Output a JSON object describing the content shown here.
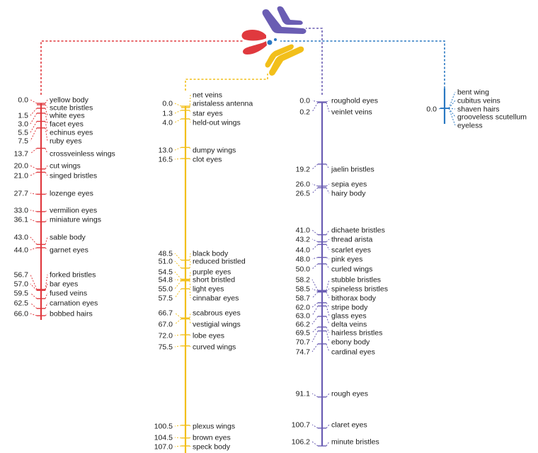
{
  "colors": {
    "x": "#e0393e",
    "c2": "#f2bf1a",
    "c3": "#6a5db3",
    "c4": "#2a78c2"
  },
  "chromosomes": [
    {
      "id": "x",
      "color": "#e0393e",
      "min": 0,
      "max": 66.0,
      "loci": [
        {
          "pos": "0.0",
          "label": "yellow body"
        },
        {
          "pos": "",
          "label": "scute bristles"
        },
        {
          "pos": "1.5",
          "label": "white eyes"
        },
        {
          "pos": "3.0",
          "label": "facet eyes"
        },
        {
          "pos": "5.5",
          "label": "echinus eyes"
        },
        {
          "pos": "7.5",
          "label": "ruby eyes"
        },
        {
          "pos": "13.7",
          "label": "crossveinless wings"
        },
        {
          "pos": "20.0",
          "label": "cut wings"
        },
        {
          "pos": "21.0",
          "label": "singed bristles"
        },
        {
          "pos": "27.7",
          "label": "lozenge eyes"
        },
        {
          "pos": "33.0",
          "label": "vermilion eyes"
        },
        {
          "pos": "36.1",
          "label": "miniature wings"
        },
        {
          "pos": "43.0",
          "label": "sable body"
        },
        {
          "pos": "44.0",
          "label": "garnet eyes"
        },
        {
          "pos": "56.7",
          "label": "forked bristles"
        },
        {
          "pos": "57.0",
          "label": "bar eyes"
        },
        {
          "pos": "59.5",
          "label": "fused veins"
        },
        {
          "pos": "62.5",
          "label": "carnation eyes"
        },
        {
          "pos": "66.0",
          "label": "bobbed hairs"
        }
      ]
    },
    {
      "id": "c2",
      "color": "#f2bf1a",
      "min": 0,
      "max": 107.0,
      "loci": [
        {
          "pos": "",
          "label": "net veins"
        },
        {
          "pos": "0.0",
          "label": "aristaless antenna"
        },
        {
          "pos": "1.3",
          "label": "star eyes"
        },
        {
          "pos": "4.0",
          "label": "held-out wings"
        },
        {
          "pos": "13.0",
          "label": "dumpy wings"
        },
        {
          "pos": "16.5",
          "label": "clot eyes"
        },
        {
          "pos": "48.5",
          "label": "black body"
        },
        {
          "pos": "51.0",
          "label": "reduced bristled"
        },
        {
          "pos": "54.5",
          "label": "purple eyes"
        },
        {
          "pos": "54.8",
          "label": "short bristled"
        },
        {
          "pos": "55.0",
          "label": "light eyes"
        },
        {
          "pos": "57.5",
          "label": "cinnabar eyes"
        },
        {
          "pos": "66.7",
          "label": "scabrous eyes"
        },
        {
          "pos": "67.0",
          "label": "vestigial wings"
        },
        {
          "pos": "72.0",
          "label": "lobe eyes"
        },
        {
          "pos": "75.5",
          "label": "curved wings"
        },
        {
          "pos": "100.5",
          "label": "plexus wings"
        },
        {
          "pos": "104.5",
          "label": "brown eyes"
        },
        {
          "pos": "107.0",
          "label": "speck body"
        }
      ]
    },
    {
      "id": "c3",
      "color": "#6a5db3",
      "min": 0,
      "max": 106.2,
      "loci": [
        {
          "pos": "0.0",
          "label": "roughold eyes"
        },
        {
          "pos": "0.2",
          "label": "veinlet veins"
        },
        {
          "pos": "19.2",
          "label": "jaelin bristles"
        },
        {
          "pos": "26.0",
          "label": "sepia eyes"
        },
        {
          "pos": "26.5",
          "label": "hairy body"
        },
        {
          "pos": "41.0",
          "label": "dichaete bristles"
        },
        {
          "pos": "43.2",
          "label": "thread arista"
        },
        {
          "pos": "44.0",
          "label": "scarlet eyes"
        },
        {
          "pos": "48.0",
          "label": "pink eyes"
        },
        {
          "pos": "50.0",
          "label": "curled wings"
        },
        {
          "pos": "58.2",
          "label": "stubble bristles"
        },
        {
          "pos": "58.5",
          "label": "spineless bristles"
        },
        {
          "pos": "58.7",
          "label": "bithorax body"
        },
        {
          "pos": "62.0",
          "label": "stripe body"
        },
        {
          "pos": "63.0",
          "label": "glass eyes"
        },
        {
          "pos": "66.2",
          "label": "delta veins"
        },
        {
          "pos": "69.5",
          "label": "hairless bristles"
        },
        {
          "pos": "70.7",
          "label": "ebony body"
        },
        {
          "pos": "74.7",
          "label": "cardinal eyes"
        },
        {
          "pos": "91.1",
          "label": "rough eyes"
        },
        {
          "pos": "100.7",
          "label": "claret eyes"
        },
        {
          "pos": "106.2",
          "label": "minute bristles"
        }
      ]
    },
    {
      "id": "c4",
      "color": "#2a78c2",
      "min": 0,
      "max": 0,
      "loci": [
        {
          "pos": "",
          "label": "bent wing"
        },
        {
          "pos": "",
          "label": "cubitus veins"
        },
        {
          "pos": "0.0",
          "label": "shaven hairs"
        },
        {
          "pos": "",
          "label": "grooveless scutellum"
        },
        {
          "pos": "",
          "label": "eyeless"
        }
      ]
    }
  ]
}
